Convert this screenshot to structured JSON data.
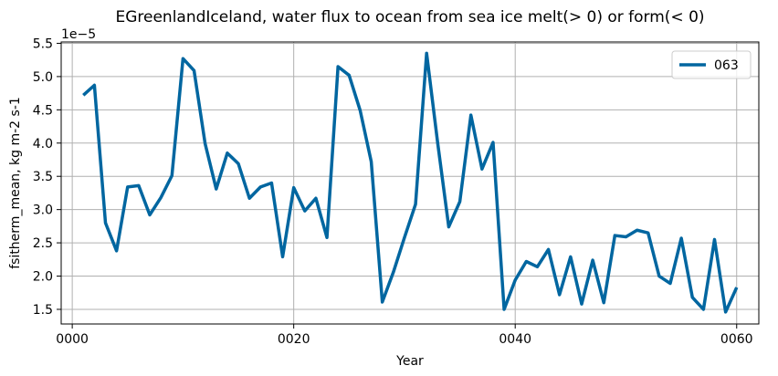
{
  "chart_data": {
    "type": "line",
    "title": "EGreenlandIceland, water flux to ocean from sea ice melt(> 0) or form(< 0)",
    "xlabel": "Year",
    "ylabel": "fsitherm_mean, kg m-2 s-1",
    "y_scale_label": "1e−5",
    "xlim": [
      -1.0,
      62.0
    ],
    "ylim": [
      1.28,
      5.52
    ],
    "x_ticks": [
      0,
      20,
      40,
      60
    ],
    "x_tick_labels": [
      "0000",
      "0020",
      "0040",
      "0060"
    ],
    "y_ticks": [
      1.5,
      2.0,
      2.5,
      3.0,
      3.5,
      4.0,
      4.5,
      5.0,
      5.5
    ],
    "y_tick_labels": [
      "1.5",
      "2.0",
      "2.5",
      "3.0",
      "3.5",
      "4.0",
      "4.5",
      "5.0",
      "5.5"
    ],
    "grid": true,
    "legend_position": "top-right",
    "series": [
      {
        "name": "063",
        "color": "#0066a0",
        "x": [
          1,
          2,
          3,
          4,
          5,
          6,
          7,
          8,
          9,
          10,
          11,
          12,
          13,
          14,
          15,
          16,
          17,
          18,
          19,
          20,
          21,
          22,
          23,
          24,
          25,
          26,
          27,
          28,
          29,
          30,
          31,
          32,
          33,
          34,
          35,
          36,
          37,
          38,
          39,
          40,
          41,
          42,
          43,
          44,
          45,
          46,
          47,
          48,
          49,
          50,
          51,
          52,
          53,
          54,
          55,
          56,
          57,
          58,
          59,
          60
        ],
        "values": [
          4.72,
          4.87,
          2.8,
          2.38,
          3.34,
          3.36,
          2.92,
          3.18,
          3.51,
          5.27,
          5.09,
          3.99,
          3.31,
          3.85,
          3.69,
          3.17,
          3.34,
          3.4,
          2.29,
          3.33,
          2.98,
          3.17,
          2.58,
          5.15,
          5.02,
          4.49,
          3.72,
          1.61,
          2.06,
          2.58,
          3.08,
          5.35,
          4.0,
          2.74,
          3.12,
          4.42,
          3.61,
          4.01,
          1.5,
          1.94,
          2.22,
          2.14,
          2.4,
          1.72,
          2.29,
          1.58,
          2.24,
          1.6,
          2.61,
          2.59,
          2.69,
          2.65,
          2.0,
          1.89,
          2.57,
          1.68,
          1.5,
          2.55,
          1.46,
          1.83
        ]
      }
    ]
  }
}
